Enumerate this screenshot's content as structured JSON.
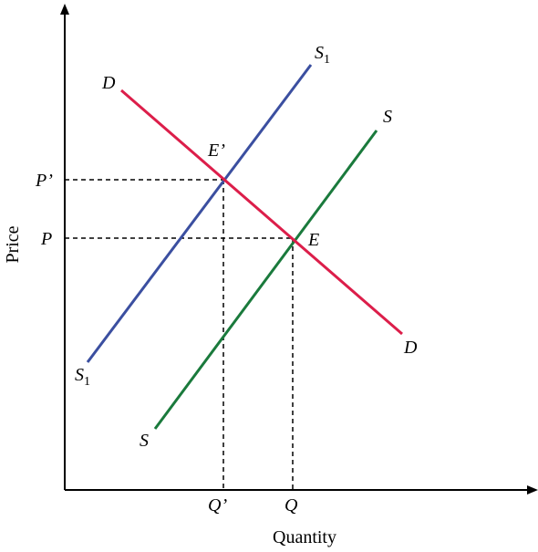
{
  "axes": {
    "x_title": "Quantity",
    "y_title": "Price"
  },
  "curves": {
    "demand": {
      "start_label": "D",
      "end_label": "D",
      "color": "#dc1e4a"
    },
    "supply_original": {
      "start_label": "S",
      "end_label": "S",
      "color": "#1a7a3c"
    },
    "supply_shifted": {
      "label_main": "S",
      "label_sub": "1",
      "color": "#3b4fa0"
    }
  },
  "points": {
    "original_equilibrium": "E",
    "new_equilibrium": "E’"
  },
  "price_labels": {
    "original": "P",
    "new": "P’"
  },
  "quantity_labels": {
    "original": "Q",
    "new": "Q’"
  }
}
